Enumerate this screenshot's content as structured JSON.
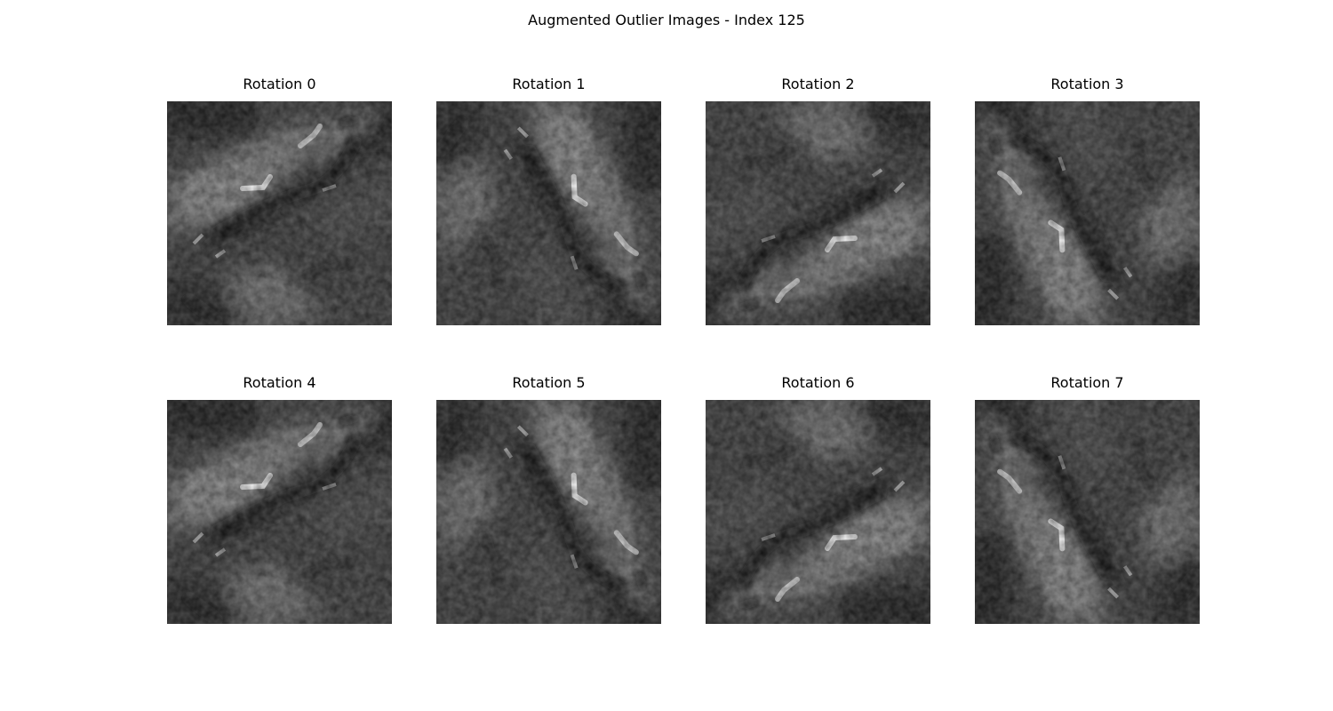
{
  "figure": {
    "title": "Augmented Outlier Images - Index 125"
  },
  "panels": [
    {
      "title": "Rotation 0",
      "orientation": "r0"
    },
    {
      "title": "Rotation 1",
      "orientation": "r1"
    },
    {
      "title": "Rotation 2",
      "orientation": "r2"
    },
    {
      "title": "Rotation 3",
      "orientation": "r3"
    },
    {
      "title": "Rotation 4",
      "orientation": "r0"
    },
    {
      "title": "Rotation 5",
      "orientation": "r1"
    },
    {
      "title": "Rotation 6",
      "orientation": "r2"
    },
    {
      "title": "Rotation 7",
      "orientation": "r3"
    }
  ]
}
